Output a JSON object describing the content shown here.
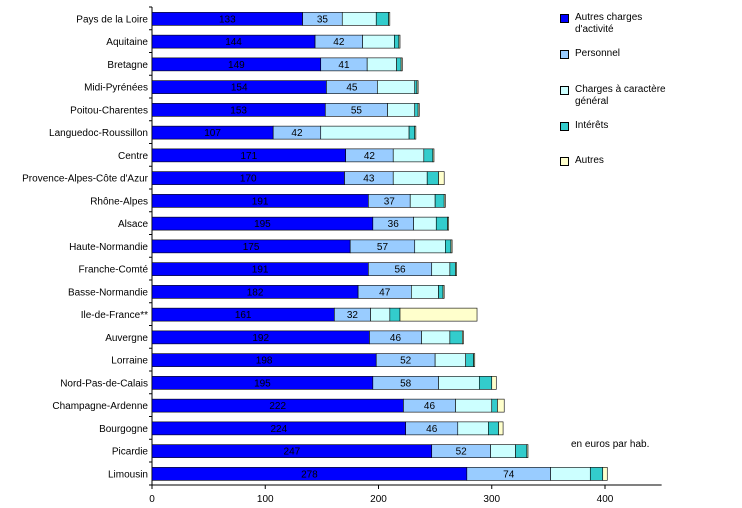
{
  "chart_data": {
    "type": "bar",
    "orientation": "horizontal",
    "stacked": true,
    "categories": [
      "Pays de la Loire",
      "Aquitaine",
      "Bretagne",
      "Midi-Pyrénées",
      "Poitou-Charentes",
      "Languedoc-Roussillon",
      "Centre",
      "Provence-Alpes-Côte d'Azur",
      "Rhône-Alpes",
      "Alsace",
      "Haute-Normandie",
      "Franche-Comté",
      "Basse-Normandie",
      "Ile-de-France**",
      "Auvergne",
      "Lorraine",
      "Nord-Pas-de-Calais",
      "Champagne-Ardenne",
      "Bourgogne",
      "Picardie",
      "Limousin"
    ],
    "series": [
      {
        "name": "Autres charges d'activité",
        "color": "#0000ff",
        "values": [
          133,
          144,
          149,
          154,
          153,
          107,
          171,
          170,
          191,
          195,
          175,
          191,
          182,
          161,
          192,
          198,
          195,
          222,
          224,
          247,
          278
        ],
        "labels": [
          "133",
          "144",
          "149",
          "154",
          "153",
          "107",
          "171",
          "170",
          "191",
          "195",
          "175",
          "191",
          "182",
          "161",
          "192",
          "198",
          "195",
          "222",
          "224",
          "247",
          "278"
        ]
      },
      {
        "name": "Personnel",
        "color": "#99ccff",
        "values": [
          35,
          42,
          41,
          45,
          55,
          42,
          42,
          43,
          37,
          36,
          57,
          56,
          47,
          32,
          46,
          52,
          58,
          46,
          46,
          52,
          74
        ],
        "labels": [
          "35",
          "42",
          "41",
          "45",
          "55",
          "42",
          "42",
          "43",
          "37",
          "36",
          "57",
          "56",
          "47",
          "32",
          "46",
          "52",
          "58",
          "46",
          "46",
          "52",
          "74"
        ]
      },
      {
        "name": "Charges à caractère général",
        "color": "#ccffff",
        "values": [
          30,
          28,
          26,
          33,
          24,
          78,
          27,
          30,
          22,
          20,
          27,
          16,
          24,
          17,
          25,
          27,
          36,
          32,
          27,
          22,
          35
        ],
        "labels": []
      },
      {
        "name": "Intérêts",
        "color": "#33cccc",
        "values": [
          11,
          4,
          4,
          2,
          3,
          5,
          8,
          10,
          8,
          10,
          5,
          5,
          4,
          9,
          11,
          7,
          11,
          5,
          9,
          10,
          11
        ],
        "labels": []
      },
      {
        "name": "Autres",
        "color": "#ffffcc",
        "values": [
          1,
          1,
          1,
          1,
          1,
          1,
          1,
          5,
          1,
          1,
          1,
          1,
          1,
          68,
          1,
          1,
          4,
          6,
          4,
          1,
          4
        ],
        "labels": []
      }
    ],
    "xlim": [
      0,
      450
    ],
    "xticks": [
      0,
      100,
      200,
      300,
      400
    ],
    "xtick_labels": [
      "0",
      "100",
      "200",
      "300",
      "400"
    ],
    "legend_position": "right",
    "annotation": "en euros par hab."
  }
}
